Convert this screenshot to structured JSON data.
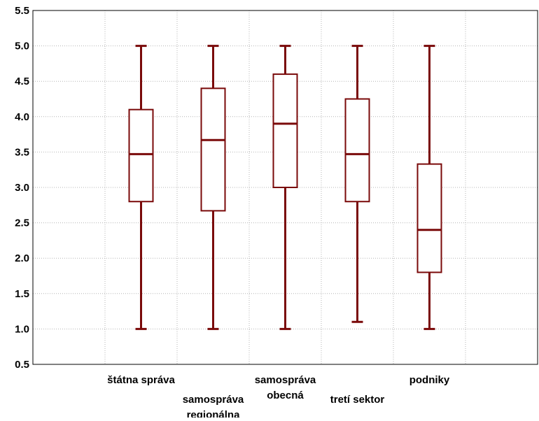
{
  "chart_data": {
    "type": "boxplot",
    "title": "",
    "xlabel": "",
    "ylabel": "",
    "ylim": [
      0.5,
      5.5
    ],
    "yticks": [
      "0.5",
      "1.0",
      "1.5",
      "2.0",
      "2.5",
      "3.0",
      "3.5",
      "4.0",
      "4.5",
      "5.0",
      "5.5"
    ],
    "grid": true,
    "color": "#7a0a0a",
    "categories": [
      [
        "štátna správa"
      ],
      [
        "samospráva",
        "regionálna"
      ],
      [
        "samospráva",
        "obecná"
      ],
      [
        "tretí sektor"
      ],
      [
        "podniky"
      ]
    ],
    "boxes": [
      {
        "min": 1.0,
        "q1": 2.8,
        "median": 3.47,
        "q3": 4.1,
        "max": 5.0
      },
      {
        "min": 1.0,
        "q1": 2.67,
        "median": 3.67,
        "q3": 4.4,
        "max": 5.0
      },
      {
        "min": 1.0,
        "q1": 3.0,
        "median": 3.9,
        "q3": 4.6,
        "max": 5.0
      },
      {
        "min": 1.1,
        "q1": 2.8,
        "median": 3.47,
        "q3": 4.25,
        "max": 5.0
      },
      {
        "min": 1.0,
        "q1": 1.8,
        "median": 2.4,
        "q3": 3.33,
        "max": 5.0
      }
    ]
  }
}
